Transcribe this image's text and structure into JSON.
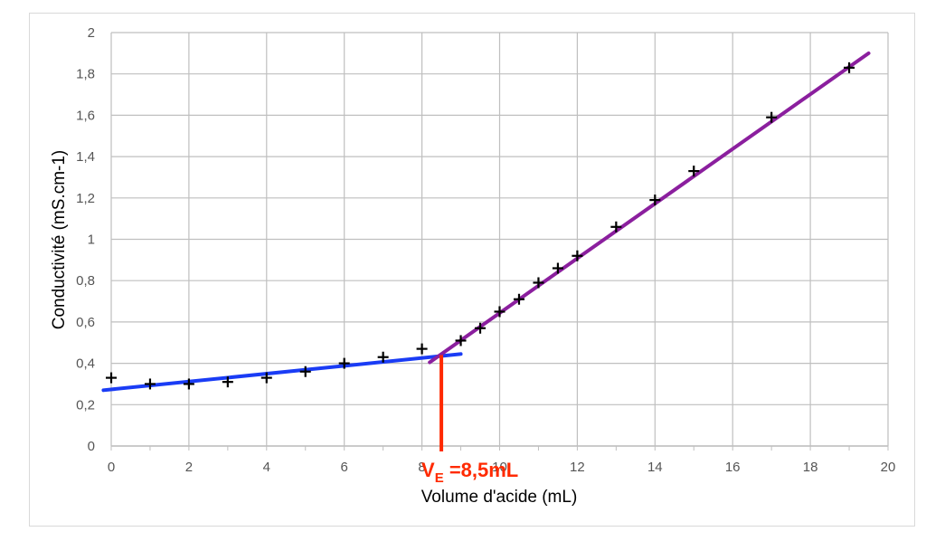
{
  "chart_data": {
    "type": "scatter",
    "xlabel": "Volume d'acide (mL)",
    "ylabel": "Conductivité (mS.cm-1)",
    "xlim": [
      0,
      20
    ],
    "ylim": [
      0,
      2
    ],
    "x_ticks": [
      0,
      2,
      4,
      6,
      8,
      10,
      12,
      14,
      16,
      18,
      20
    ],
    "y_ticks": [
      0,
      0.2,
      0.4,
      0.6,
      0.8,
      1,
      1.2,
      1.4,
      1.6,
      1.8,
      2
    ],
    "x_tick_labels": [
      "0",
      "2",
      "4",
      "6",
      "8",
      "10",
      "12",
      "14",
      "16",
      "18",
      "20"
    ],
    "y_tick_labels": [
      "0",
      "0,2",
      "0,4",
      "0,6",
      "0,8",
      "1",
      "1,2",
      "1,4",
      "1,6",
      "1,8",
      "2"
    ],
    "grid": true,
    "series": [
      {
        "marker": "plus",
        "color": "#000000",
        "points": [
          [
            0,
            0.33
          ],
          [
            1,
            0.3
          ],
          [
            2,
            0.3
          ],
          [
            3,
            0.31
          ],
          [
            4,
            0.33
          ],
          [
            5,
            0.36
          ],
          [
            6,
            0.4
          ],
          [
            7,
            0.43
          ],
          [
            8,
            0.47
          ],
          [
            9,
            0.51
          ],
          [
            9.5,
            0.57
          ],
          [
            10,
            0.65
          ],
          [
            10.5,
            0.71
          ],
          [
            11,
            0.79
          ],
          [
            11.5,
            0.86
          ],
          [
            12,
            0.92
          ],
          [
            13,
            1.06
          ],
          [
            14,
            1.19
          ],
          [
            15,
            1.33
          ],
          [
            17,
            1.59
          ],
          [
            19,
            1.83
          ]
        ]
      }
    ],
    "fit_lines": [
      {
        "color": "#1a3cf5",
        "from": [
          -0.2,
          0.27
        ],
        "to": [
          9,
          0.445
        ]
      },
      {
        "color": "#8b1f9e",
        "from": [
          8.2,
          0.405
        ],
        "to": [
          19.5,
          1.9
        ]
      }
    ],
    "equivalence": {
      "x": 8.5,
      "y": 0.44,
      "color": "#ff2a00",
      "label_main": "V",
      "label_sub": "E",
      "label_rest": " =8,5mL"
    }
  }
}
